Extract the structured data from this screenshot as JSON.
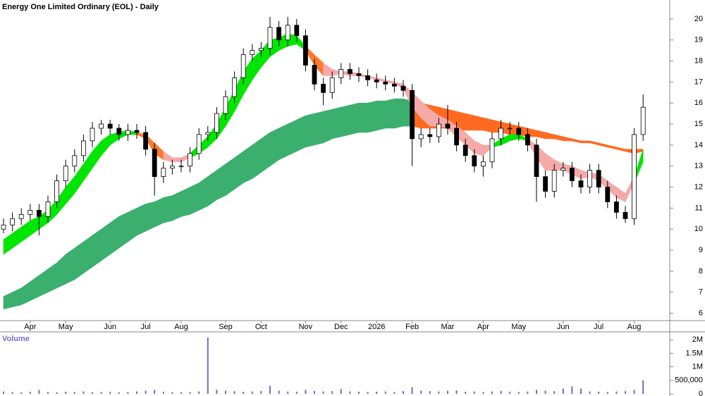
{
  "chart_data": [
    {
      "type": "candlestick",
      "title": "Energy One Limited Ordinary (EOL) - Daily",
      "categories": [
        null,
        null,
        null,
        "Apr",
        null,
        null,
        null,
        "May",
        null,
        null,
        null,
        null,
        "Jun",
        null,
        null,
        null,
        "Jul",
        null,
        null,
        null,
        "Aug",
        null,
        null,
        null,
        null,
        "Sep",
        null,
        null,
        null,
        "Oct",
        null,
        null,
        null,
        null,
        "Nov",
        null,
        null,
        null,
        "Dec",
        null,
        null,
        null,
        "2026",
        null,
        null,
        null,
        "Feb",
        null,
        null,
        null,
        "Mar",
        null,
        null,
        null,
        "Apr",
        null,
        null,
        null,
        "May",
        null,
        null,
        null,
        null,
        "Jun",
        null,
        null,
        null,
        "Jul",
        null,
        null,
        null,
        "Aug",
        null
      ],
      "open": [
        10.0,
        10.2,
        10.5,
        10.7,
        10.9,
        10.6,
        11.3,
        12.3,
        13.0,
        13.5,
        14.2,
        14.8,
        15.0,
        14.8,
        14.5,
        14.7,
        14.6,
        13.8,
        12.5,
        12.9,
        13.0,
        13.0,
        13.6,
        14.5,
        14.6,
        15.5,
        16.3,
        17.2,
        18.3,
        18.5,
        18.6,
        19.6,
        19.0,
        19.7,
        19.2,
        17.8,
        16.9,
        16.5,
        17.2,
        17.6,
        17.4,
        17.3,
        17.1,
        17.0,
        16.9,
        16.8,
        16.6,
        14.3,
        14.5,
        14.4,
        15.0,
        14.8,
        14.0,
        13.5,
        13.0,
        13.2,
        14.3,
        14.8,
        14.8,
        14.5,
        14.0,
        12.5,
        11.8,
        12.8,
        12.9,
        12.3,
        12.0,
        12.8,
        12.0,
        11.3,
        10.8,
        10.5,
        14.5
      ],
      "high": [
        10.5,
        10.8,
        11.0,
        11.2,
        11.2,
        11.6,
        12.6,
        13.3,
        13.8,
        14.5,
        15.1,
        15.2,
        15.2,
        15.0,
        15.0,
        15.0,
        14.9,
        14.1,
        13.2,
        13.3,
        13.3,
        13.9,
        14.8,
        14.9,
        15.8,
        16.6,
        17.5,
        18.6,
        18.8,
        18.9,
        20.1,
        19.9,
        20.1,
        20.0,
        19.5,
        18.1,
        17.2,
        17.5,
        17.9,
        17.9,
        17.7,
        17.6,
        17.4,
        17.3,
        17.2,
        17.1,
        16.9,
        14.8,
        14.8,
        15.3,
        15.9,
        15.1,
        14.3,
        13.8,
        13.5,
        14.6,
        15.2,
        15.1,
        15.1,
        14.8,
        14.3,
        12.8,
        13.1,
        13.2,
        13.2,
        12.6,
        13.1,
        13.1,
        12.3,
        11.6,
        11.1,
        14.8,
        16.4
      ],
      "low": [
        9.8,
        9.9,
        10.2,
        10.4,
        9.7,
        10.3,
        11.0,
        12.0,
        12.7,
        13.2,
        13.9,
        14.5,
        14.5,
        14.2,
        14.2,
        14.3,
        13.5,
        11.6,
        12.2,
        12.6,
        12.7,
        12.7,
        13.3,
        14.2,
        14.3,
        15.2,
        16.0,
        16.9,
        18.0,
        18.2,
        18.3,
        18.7,
        18.7,
        18.9,
        17.5,
        16.6,
        15.9,
        16.2,
        16.9,
        17.1,
        17.0,
        16.8,
        16.7,
        16.6,
        16.5,
        16.3,
        13.0,
        13.9,
        14.1,
        14.1,
        14.5,
        13.7,
        13.2,
        12.7,
        12.5,
        12.9,
        14.0,
        14.5,
        14.2,
        13.7,
        11.3,
        11.5,
        11.5,
        12.5,
        12.0,
        11.7,
        11.7,
        11.7,
        11.0,
        10.5,
        10.3,
        10.2,
        14.2
      ],
      "close": [
        10.2,
        10.5,
        10.7,
        10.9,
        10.6,
        11.3,
        12.3,
        13.0,
        13.5,
        14.2,
        14.8,
        15.0,
        14.8,
        14.5,
        14.7,
        14.6,
        13.8,
        12.5,
        12.9,
        13.0,
        13.0,
        13.6,
        14.5,
        14.6,
        15.5,
        16.3,
        17.2,
        18.3,
        18.5,
        18.6,
        19.6,
        19.0,
        19.7,
        19.2,
        17.8,
        16.9,
        16.5,
        17.2,
        17.6,
        17.4,
        17.3,
        17.1,
        17.0,
        16.9,
        16.8,
        16.6,
        14.3,
        14.5,
        14.4,
        15.0,
        14.8,
        14.0,
        13.5,
        13.0,
        13.2,
        14.3,
        14.8,
        14.8,
        14.5,
        14.0,
        12.5,
        11.8,
        12.8,
        12.9,
        12.3,
        12.0,
        12.8,
        12.0,
        11.3,
        10.8,
        10.5,
        14.5,
        15.8
      ],
      "up_color": "#ffffff",
      "down_color": "#000000",
      "ribbons": [
        {
          "upper": [
            6.8,
            7.0,
            7.2,
            7.5,
            7.8,
            8.1,
            8.4,
            8.8,
            9.1,
            9.4,
            9.7,
            10.0,
            10.3,
            10.6,
            10.8,
            11.0,
            11.2,
            11.3,
            11.5,
            11.6,
            11.8,
            12.0,
            12.2,
            12.5,
            12.8,
            13.1,
            13.4,
            13.7,
            14.0,
            14.3,
            14.6,
            14.8,
            15.0,
            15.2,
            15.4,
            15.5,
            15.6,
            15.7,
            15.8,
            15.9,
            16.0,
            16.0,
            16.1,
            16.1,
            16.2,
            16.2,
            16.1,
            16.0,
            15.9,
            15.8,
            15.7,
            15.6,
            15.5,
            15.4,
            15.3,
            15.2,
            15.1,
            15.0,
            14.9,
            14.8,
            14.7,
            14.6,
            14.5,
            14.4,
            14.3,
            14.2,
            14.2,
            14.1,
            14.0,
            13.9,
            13.8,
            13.8,
            13.8
          ],
          "lower": [
            6.2,
            6.3,
            6.4,
            6.6,
            6.8,
            7.0,
            7.2,
            7.4,
            7.6,
            7.9,
            8.2,
            8.5,
            8.8,
            9.1,
            9.4,
            9.7,
            9.9,
            10.1,
            10.3,
            10.4,
            10.6,
            10.7,
            10.9,
            11.1,
            11.4,
            11.6,
            11.9,
            12.2,
            12.4,
            12.7,
            13.0,
            13.3,
            13.5,
            13.7,
            13.9,
            14.0,
            14.1,
            14.3,
            14.4,
            14.5,
            14.6,
            14.6,
            14.7,
            14.8,
            14.8,
            14.9,
            14.9,
            14.8,
            14.8,
            14.8,
            14.8,
            14.7,
            14.7,
            14.7,
            14.7,
            14.6,
            14.6,
            14.5,
            14.5,
            14.4,
            14.4,
            14.3,
            14.3,
            14.2,
            14.2,
            14.1,
            14.1,
            14.0,
            13.9,
            13.8,
            13.7,
            13.6,
            13.7
          ],
          "colors": [
            "#3aaf6e",
            "#3aaf6e",
            "#3aaf6e",
            "#3aaf6e",
            "#3aaf6e",
            "#3aaf6e",
            "#3aaf6e",
            "#3aaf6e",
            "#3aaf6e",
            "#3aaf6e",
            "#3aaf6e",
            "#3aaf6e",
            "#3aaf6e",
            "#3aaf6e",
            "#3aaf6e",
            "#3aaf6e",
            "#3aaf6e",
            "#3aaf6e",
            "#3aaf6e",
            "#3aaf6e",
            "#3aaf6e",
            "#3aaf6e",
            "#3aaf6e",
            "#3aaf6e",
            "#3aaf6e",
            "#3aaf6e",
            "#3aaf6e",
            "#3aaf6e",
            "#3aaf6e",
            "#3aaf6e",
            "#3aaf6e",
            "#3aaf6e",
            "#3aaf6e",
            "#3aaf6e",
            "#3aaf6e",
            "#3aaf6e",
            "#3aaf6e",
            "#3aaf6e",
            "#3aaf6e",
            "#3aaf6e",
            "#3aaf6e",
            "#3aaf6e",
            "#3aaf6e",
            "#3aaf6e",
            "#3aaf6e",
            "#3aaf6e",
            "#ff6a20",
            "#ff6a20",
            "#ff6a20",
            "#ff6a20",
            "#ff6a20",
            "#ff6a20",
            "#ff6a20",
            "#ff6a20",
            "#ff6a20",
            "#ff6a20",
            "#ff6a20",
            "#ff6a20",
            "#ff6a20",
            "#ff6a20",
            "#ff6a20",
            "#ff6a20",
            "#ff6a20",
            "#ff6a20",
            "#ff6a20",
            "#ff6a20",
            "#ff6a20",
            "#ff6a20",
            "#ff6a20",
            "#ff6a20",
            "#ff6a20",
            "#ff6a20",
            "#ff6a20"
          ]
        },
        {
          "upper": [
            9.5,
            9.8,
            10.1,
            10.4,
            10.6,
            10.9,
            11.4,
            12.0,
            12.5,
            13.1,
            13.7,
            14.2,
            14.5,
            14.6,
            14.7,
            14.6,
            14.5,
            14.1,
            13.7,
            13.4,
            13.4,
            13.6,
            14.0,
            14.4,
            15.0,
            15.8,
            16.6,
            17.5,
            18.1,
            18.5,
            19.0,
            19.1,
            19.3,
            19.2,
            18.7,
            18.3,
            17.9,
            17.6,
            17.5,
            17.5,
            17.4,
            17.3,
            17.2,
            17.1,
            17.0,
            16.9,
            16.5,
            16.1,
            15.7,
            15.4,
            15.2,
            14.9,
            14.6,
            14.2,
            14.0,
            14.0,
            14.3,
            14.5,
            14.5,
            14.3,
            14.0,
            13.6,
            13.3,
            13.1,
            13.0,
            12.8,
            12.7,
            12.6,
            12.3,
            12.0,
            11.7,
            12.5,
            13.8
          ],
          "lower": [
            8.8,
            9.1,
            9.4,
            9.7,
            10.0,
            10.3,
            10.7,
            11.2,
            11.7,
            12.3,
            12.9,
            13.5,
            14.0,
            14.3,
            14.5,
            14.5,
            14.3,
            13.6,
            13.3,
            13.2,
            13.2,
            13.4,
            13.6,
            13.9,
            14.3,
            14.9,
            15.6,
            16.4,
            17.1,
            17.7,
            18.2,
            18.5,
            18.7,
            18.8,
            18.5,
            17.8,
            17.3,
            17.3,
            17.4,
            17.3,
            17.3,
            17.2,
            17.1,
            17.0,
            16.9,
            16.7,
            15.8,
            15.3,
            14.9,
            14.9,
            14.8,
            14.4,
            14.0,
            13.6,
            13.5,
            13.9,
            14.0,
            14.2,
            14.3,
            14.2,
            13.4,
            12.8,
            12.8,
            12.8,
            12.6,
            12.4,
            12.5,
            12.3,
            11.9,
            11.5,
            11.3,
            12.2,
            13.2
          ],
          "colors": [
            "#00e600",
            "#00e600",
            "#00e600",
            "#00e600",
            "#00e600",
            "#00e600",
            "#00e600",
            "#00e600",
            "#00e600",
            "#00e600",
            "#00e600",
            "#00e600",
            "#00e600",
            "#00e600",
            "#00e600",
            "#ff7a2a",
            "#ff7a2a",
            "#ff7a2a",
            "#f6a9a9",
            "#f6a9a9",
            "#f6a9a9",
            "#00e600",
            "#00e600",
            "#00e600",
            "#00e600",
            "#00e600",
            "#00e600",
            "#00e600",
            "#00e600",
            "#00e600",
            "#00e600",
            "#00e600",
            "#00e600",
            "#00e600",
            "#ff7a2a",
            "#ff7a2a",
            "#f6a9a9",
            "#f6a9a9",
            "#f6a9a9",
            "#f6a9a9",
            "#f6a9a9",
            "#f6a9a9",
            "#f6a9a9",
            "#f6a9a9",
            "#f6a9a9",
            "#f6a9a9",
            "#f6a9a9",
            "#f6a9a9",
            "#f6a9a9",
            "#f6a9a9",
            "#f6a9a9",
            "#f6a9a9",
            "#f6a9a9",
            "#f6a9a9",
            "#f6a9a9",
            "#00e600",
            "#00e600",
            "#00e600",
            "#00e600",
            "#f6a9a9",
            "#f6a9a9",
            "#f6a9a9",
            "#f6a9a9",
            "#f6a9a9",
            "#f6a9a9",
            "#f6a9a9",
            "#f6a9a9",
            "#f6a9a9",
            "#f6a9a9",
            "#f6a9a9",
            "#f6a9a9",
            "#00e600",
            "#00e600"
          ]
        }
      ],
      "ylim": [
        5.65,
        20.9
      ],
      "yticks": [
        6,
        7,
        8,
        9,
        10,
        11,
        12,
        13,
        14,
        15,
        16,
        17,
        18,
        19,
        20
      ]
    },
    {
      "type": "bar",
      "title": "Volume",
      "color": "#7070c8",
      "values": [
        90000,
        70000,
        60000,
        80000,
        150000,
        70000,
        60000,
        80000,
        70000,
        90000,
        60000,
        70000,
        80000,
        60000,
        70000,
        90000,
        120000,
        150000,
        80000,
        70000,
        60000,
        70000,
        90000,
        2080000,
        150000,
        120000,
        100000,
        80000,
        90000,
        110000,
        300000,
        120000,
        90000,
        80000,
        150000,
        110000,
        90000,
        100000,
        180000,
        90000,
        80000,
        70000,
        80000,
        90000,
        70000,
        100000,
        250000,
        120000,
        100000,
        90000,
        110000,
        130000,
        80000,
        90000,
        70000,
        90000,
        110000,
        80000,
        70000,
        90000,
        150000,
        120000,
        100000,
        200000,
        280000,
        200000,
        90000,
        80000,
        70000,
        90000,
        100000,
        150000,
        500000
      ],
      "ylim": [
        0,
        2160000
      ],
      "yticks": [
        0,
        {
          "value": 500000,
          "label": "500,000"
        },
        {
          "value": 1000000,
          "label": "1M"
        },
        {
          "value": 1500000,
          "label": "1.5M"
        },
        {
          "value": 2000000,
          "label": "2M"
        }
      ]
    }
  ]
}
